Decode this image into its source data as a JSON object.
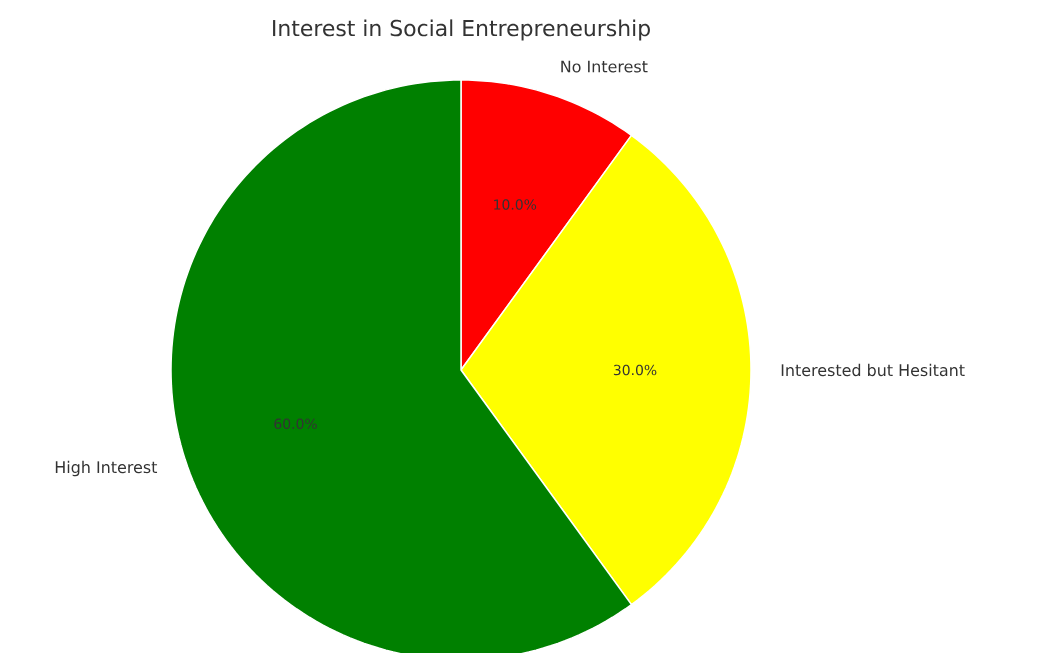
{
  "chart_data": {
    "type": "pie",
    "title": "Interest in Social Entrepreneurship",
    "categories": [
      "No Interest",
      "Interested but Hesitant",
      "High Interest"
    ],
    "values": [
      10,
      30,
      60
    ],
    "colors": [
      "#ff0000",
      "#ffff00",
      "#008000"
    ],
    "value_labels": [
      "10.0%",
      "30.0%",
      "60.0%"
    ]
  }
}
